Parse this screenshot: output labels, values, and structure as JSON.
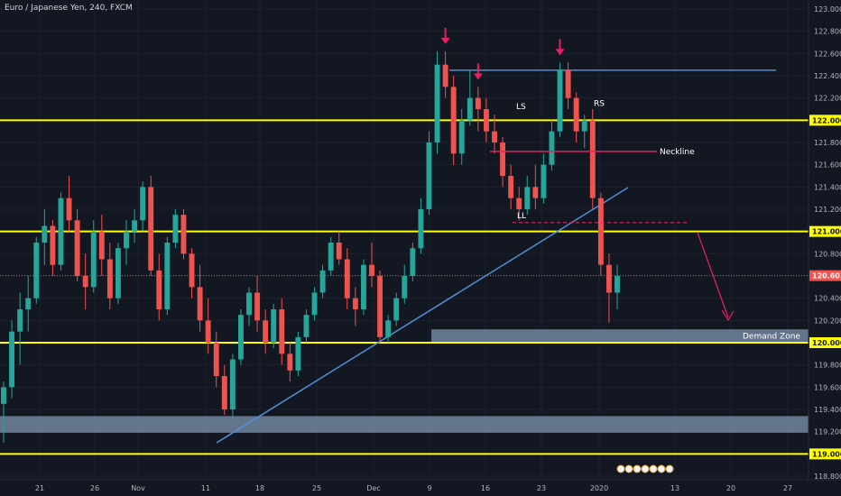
{
  "header": {
    "symbol": "Euro / Japanese Yen, 240, FXCM"
  },
  "colors": {
    "background": "#131722",
    "bull": "#26a69a",
    "bear": "#ef5350",
    "level": "#ffff00",
    "trend": "#4f8fd6",
    "neckline": "#e91e63",
    "arrow": "#e91e63",
    "zone": "#8fa6c8",
    "current": "#ef5350"
  },
  "chart_data": {
    "type": "candlestick",
    "y_axis": {
      "range": [
        118.8,
        123.0
      ],
      "ticks": [
        "123.000",
        "122.800",
        "122.600",
        "122.400",
        "122.200",
        "122.000",
        "121.800",
        "121.600",
        "121.400",
        "121.200",
        "121.000",
        "120.800",
        "120.600",
        "120.400",
        "120.200",
        "120.000",
        "119.800",
        "119.600",
        "119.400",
        "119.200",
        "119.000",
        "118.800"
      ]
    },
    "x_axis": {
      "ticks": [
        "21",
        "26",
        "Nov",
        "11",
        "18",
        "25",
        "Dec",
        "9",
        "16",
        "23",
        "2020",
        "13",
        "20",
        "27"
      ]
    },
    "current_price": "120.603",
    "horizontal_levels": [
      {
        "price": 122.0,
        "label": "122.000"
      },
      {
        "price": 121.0,
        "label": "121.000"
      },
      {
        "price": 120.0,
        "label": "120.000"
      },
      {
        "price": 119.0,
        "label": "119.000"
      }
    ],
    "resistance_line": {
      "price": 122.45
    },
    "neckline": {
      "price": 121.72,
      "label": "Neckline"
    },
    "ll_level": {
      "price": 121.08,
      "label": "LL"
    },
    "pattern_labels": [
      {
        "label": "LS",
        "price": 122.1
      },
      {
        "label": "RS",
        "price": 122.13
      }
    ],
    "zones": [
      {
        "label": "Demand Zone",
        "from": 120.0,
        "to": 120.12
      },
      {
        "label": "",
        "from": 119.19,
        "to": 119.34
      }
    ],
    "candles": [
      {
        "o": 119.45,
        "h": 119.65,
        "l": 119.1,
        "c": 119.6
      },
      {
        "o": 119.6,
        "h": 120.2,
        "l": 119.5,
        "c": 120.1
      },
      {
        "o": 120.1,
        "h": 120.45,
        "l": 119.8,
        "c": 120.3
      },
      {
        "o": 120.3,
        "h": 120.6,
        "l": 120.1,
        "c": 120.4
      },
      {
        "o": 120.4,
        "h": 120.95,
        "l": 120.35,
        "c": 120.9
      },
      {
        "o": 120.9,
        "h": 121.2,
        "l": 120.7,
        "c": 121.05
      },
      {
        "o": 121.05,
        "h": 121.1,
        "l": 120.6,
        "c": 120.7
      },
      {
        "o": 120.7,
        "h": 121.35,
        "l": 120.65,
        "c": 121.3
      },
      {
        "o": 121.3,
        "h": 121.5,
        "l": 121.0,
        "c": 121.1
      },
      {
        "o": 121.1,
        "h": 121.2,
        "l": 120.55,
        "c": 120.6
      },
      {
        "o": 120.6,
        "h": 120.8,
        "l": 120.3,
        "c": 120.5
      },
      {
        "o": 120.5,
        "h": 121.1,
        "l": 120.45,
        "c": 121.0
      },
      {
        "o": 121.0,
        "h": 121.15,
        "l": 120.6,
        "c": 120.75
      },
      {
        "o": 120.75,
        "h": 120.9,
        "l": 120.3,
        "c": 120.4
      },
      {
        "o": 120.4,
        "h": 120.9,
        "l": 120.35,
        "c": 120.85
      },
      {
        "o": 120.85,
        "h": 121.1,
        "l": 120.7,
        "c": 121.0
      },
      {
        "o": 121.0,
        "h": 121.2,
        "l": 120.9,
        "c": 121.1
      },
      {
        "o": 121.1,
        "h": 121.45,
        "l": 121.0,
        "c": 121.4
      },
      {
        "o": 121.4,
        "h": 121.5,
        "l": 120.6,
        "c": 120.65
      },
      {
        "o": 120.65,
        "h": 120.8,
        "l": 120.2,
        "c": 120.3
      },
      {
        "o": 120.3,
        "h": 120.95,
        "l": 120.25,
        "c": 120.9
      },
      {
        "o": 120.9,
        "h": 121.2,
        "l": 120.85,
        "c": 121.15
      },
      {
        "o": 121.15,
        "h": 121.2,
        "l": 120.75,
        "c": 120.8
      },
      {
        "o": 120.8,
        "h": 120.85,
        "l": 120.4,
        "c": 120.5
      },
      {
        "o": 120.5,
        "h": 120.7,
        "l": 120.1,
        "c": 120.2
      },
      {
        "o": 120.2,
        "h": 120.4,
        "l": 119.9,
        "c": 120.0
      },
      {
        "o": 120.0,
        "h": 120.1,
        "l": 119.6,
        "c": 119.7
      },
      {
        "o": 119.7,
        "h": 119.8,
        "l": 119.35,
        "c": 119.4
      },
      {
        "o": 119.4,
        "h": 119.9,
        "l": 119.3,
        "c": 119.85
      },
      {
        "o": 119.85,
        "h": 120.3,
        "l": 119.8,
        "c": 120.25
      },
      {
        "o": 120.25,
        "h": 120.5,
        "l": 120.15,
        "c": 120.45
      },
      {
        "o": 120.45,
        "h": 120.6,
        "l": 120.1,
        "c": 120.2
      },
      {
        "o": 120.2,
        "h": 120.3,
        "l": 119.9,
        "c": 120.0
      },
      {
        "o": 120.0,
        "h": 120.35,
        "l": 119.95,
        "c": 120.3
      },
      {
        "o": 120.3,
        "h": 120.4,
        "l": 119.8,
        "c": 119.9
      },
      {
        "o": 119.9,
        "h": 120.0,
        "l": 119.65,
        "c": 119.75
      },
      {
        "o": 119.75,
        "h": 120.1,
        "l": 119.7,
        "c": 120.05
      },
      {
        "o": 120.05,
        "h": 120.3,
        "l": 120.0,
        "c": 120.25
      },
      {
        "o": 120.25,
        "h": 120.5,
        "l": 120.2,
        "c": 120.45
      },
      {
        "o": 120.45,
        "h": 120.7,
        "l": 120.4,
        "c": 120.65
      },
      {
        "o": 120.65,
        "h": 120.95,
        "l": 120.6,
        "c": 120.9
      },
      {
        "o": 120.9,
        "h": 121.0,
        "l": 120.7,
        "c": 120.75
      },
      {
        "o": 120.75,
        "h": 120.85,
        "l": 120.3,
        "c": 120.4
      },
      {
        "o": 120.4,
        "h": 120.5,
        "l": 120.15,
        "c": 120.3
      },
      {
        "o": 120.3,
        "h": 120.75,
        "l": 120.25,
        "c": 120.7
      },
      {
        "o": 120.7,
        "h": 120.9,
        "l": 120.5,
        "c": 120.6
      },
      {
        "o": 120.6,
        "h": 120.65,
        "l": 120.0,
        "c": 120.05
      },
      {
        "o": 120.05,
        "h": 120.25,
        "l": 120.0,
        "c": 120.2
      },
      {
        "o": 120.2,
        "h": 120.45,
        "l": 120.15,
        "c": 120.4
      },
      {
        "o": 120.4,
        "h": 120.7,
        "l": 120.35,
        "c": 120.6
      },
      {
        "o": 120.6,
        "h": 120.9,
        "l": 120.55,
        "c": 120.85
      },
      {
        "o": 120.85,
        "h": 121.3,
        "l": 120.8,
        "c": 121.2
      },
      {
        "o": 121.2,
        "h": 121.9,
        "l": 121.15,
        "c": 121.8
      },
      {
        "o": 121.8,
        "h": 122.62,
        "l": 121.7,
        "c": 122.5
      },
      {
        "o": 122.5,
        "h": 122.62,
        "l": 122.2,
        "c": 122.3
      },
      {
        "o": 122.3,
        "h": 122.4,
        "l": 121.6,
        "c": 121.7
      },
      {
        "o": 121.7,
        "h": 122.1,
        "l": 121.6,
        "c": 122.0
      },
      {
        "o": 122.0,
        "h": 122.45,
        "l": 121.95,
        "c": 122.2
      },
      {
        "o": 122.2,
        "h": 122.3,
        "l": 121.9,
        "c": 122.1
      },
      {
        "o": 122.1,
        "h": 122.2,
        "l": 121.8,
        "c": 121.9
      },
      {
        "o": 121.9,
        "h": 122.05,
        "l": 121.7,
        "c": 121.8
      },
      {
        "o": 121.8,
        "h": 121.85,
        "l": 121.4,
        "c": 121.5
      },
      {
        "o": 121.5,
        "h": 121.6,
        "l": 121.2,
        "c": 121.3
      },
      {
        "o": 121.3,
        "h": 121.4,
        "l": 121.1,
        "c": 121.2
      },
      {
        "o": 121.2,
        "h": 121.5,
        "l": 121.15,
        "c": 121.4
      },
      {
        "o": 121.4,
        "h": 121.6,
        "l": 121.2,
        "c": 121.3
      },
      {
        "o": 121.3,
        "h": 121.7,
        "l": 121.25,
        "c": 121.6
      },
      {
        "o": 121.6,
        "h": 122.0,
        "l": 121.55,
        "c": 121.9
      },
      {
        "o": 121.9,
        "h": 122.52,
        "l": 121.85,
        "c": 122.45
      },
      {
        "o": 122.45,
        "h": 122.52,
        "l": 122.1,
        "c": 122.2
      },
      {
        "o": 122.2,
        "h": 122.25,
        "l": 121.8,
        "c": 121.9
      },
      {
        "o": 121.9,
        "h": 122.05,
        "l": 121.75,
        "c": 122.0
      },
      {
        "o": 122.0,
        "h": 122.1,
        "l": 121.2,
        "c": 121.3
      },
      {
        "o": 121.3,
        "h": 121.35,
        "l": 120.6,
        "c": 120.7
      },
      {
        "o": 120.7,
        "h": 120.8,
        "l": 120.18,
        "c": 120.45
      },
      {
        "o": 120.45,
        "h": 120.7,
        "l": 120.3,
        "c": 120.6
      }
    ]
  }
}
